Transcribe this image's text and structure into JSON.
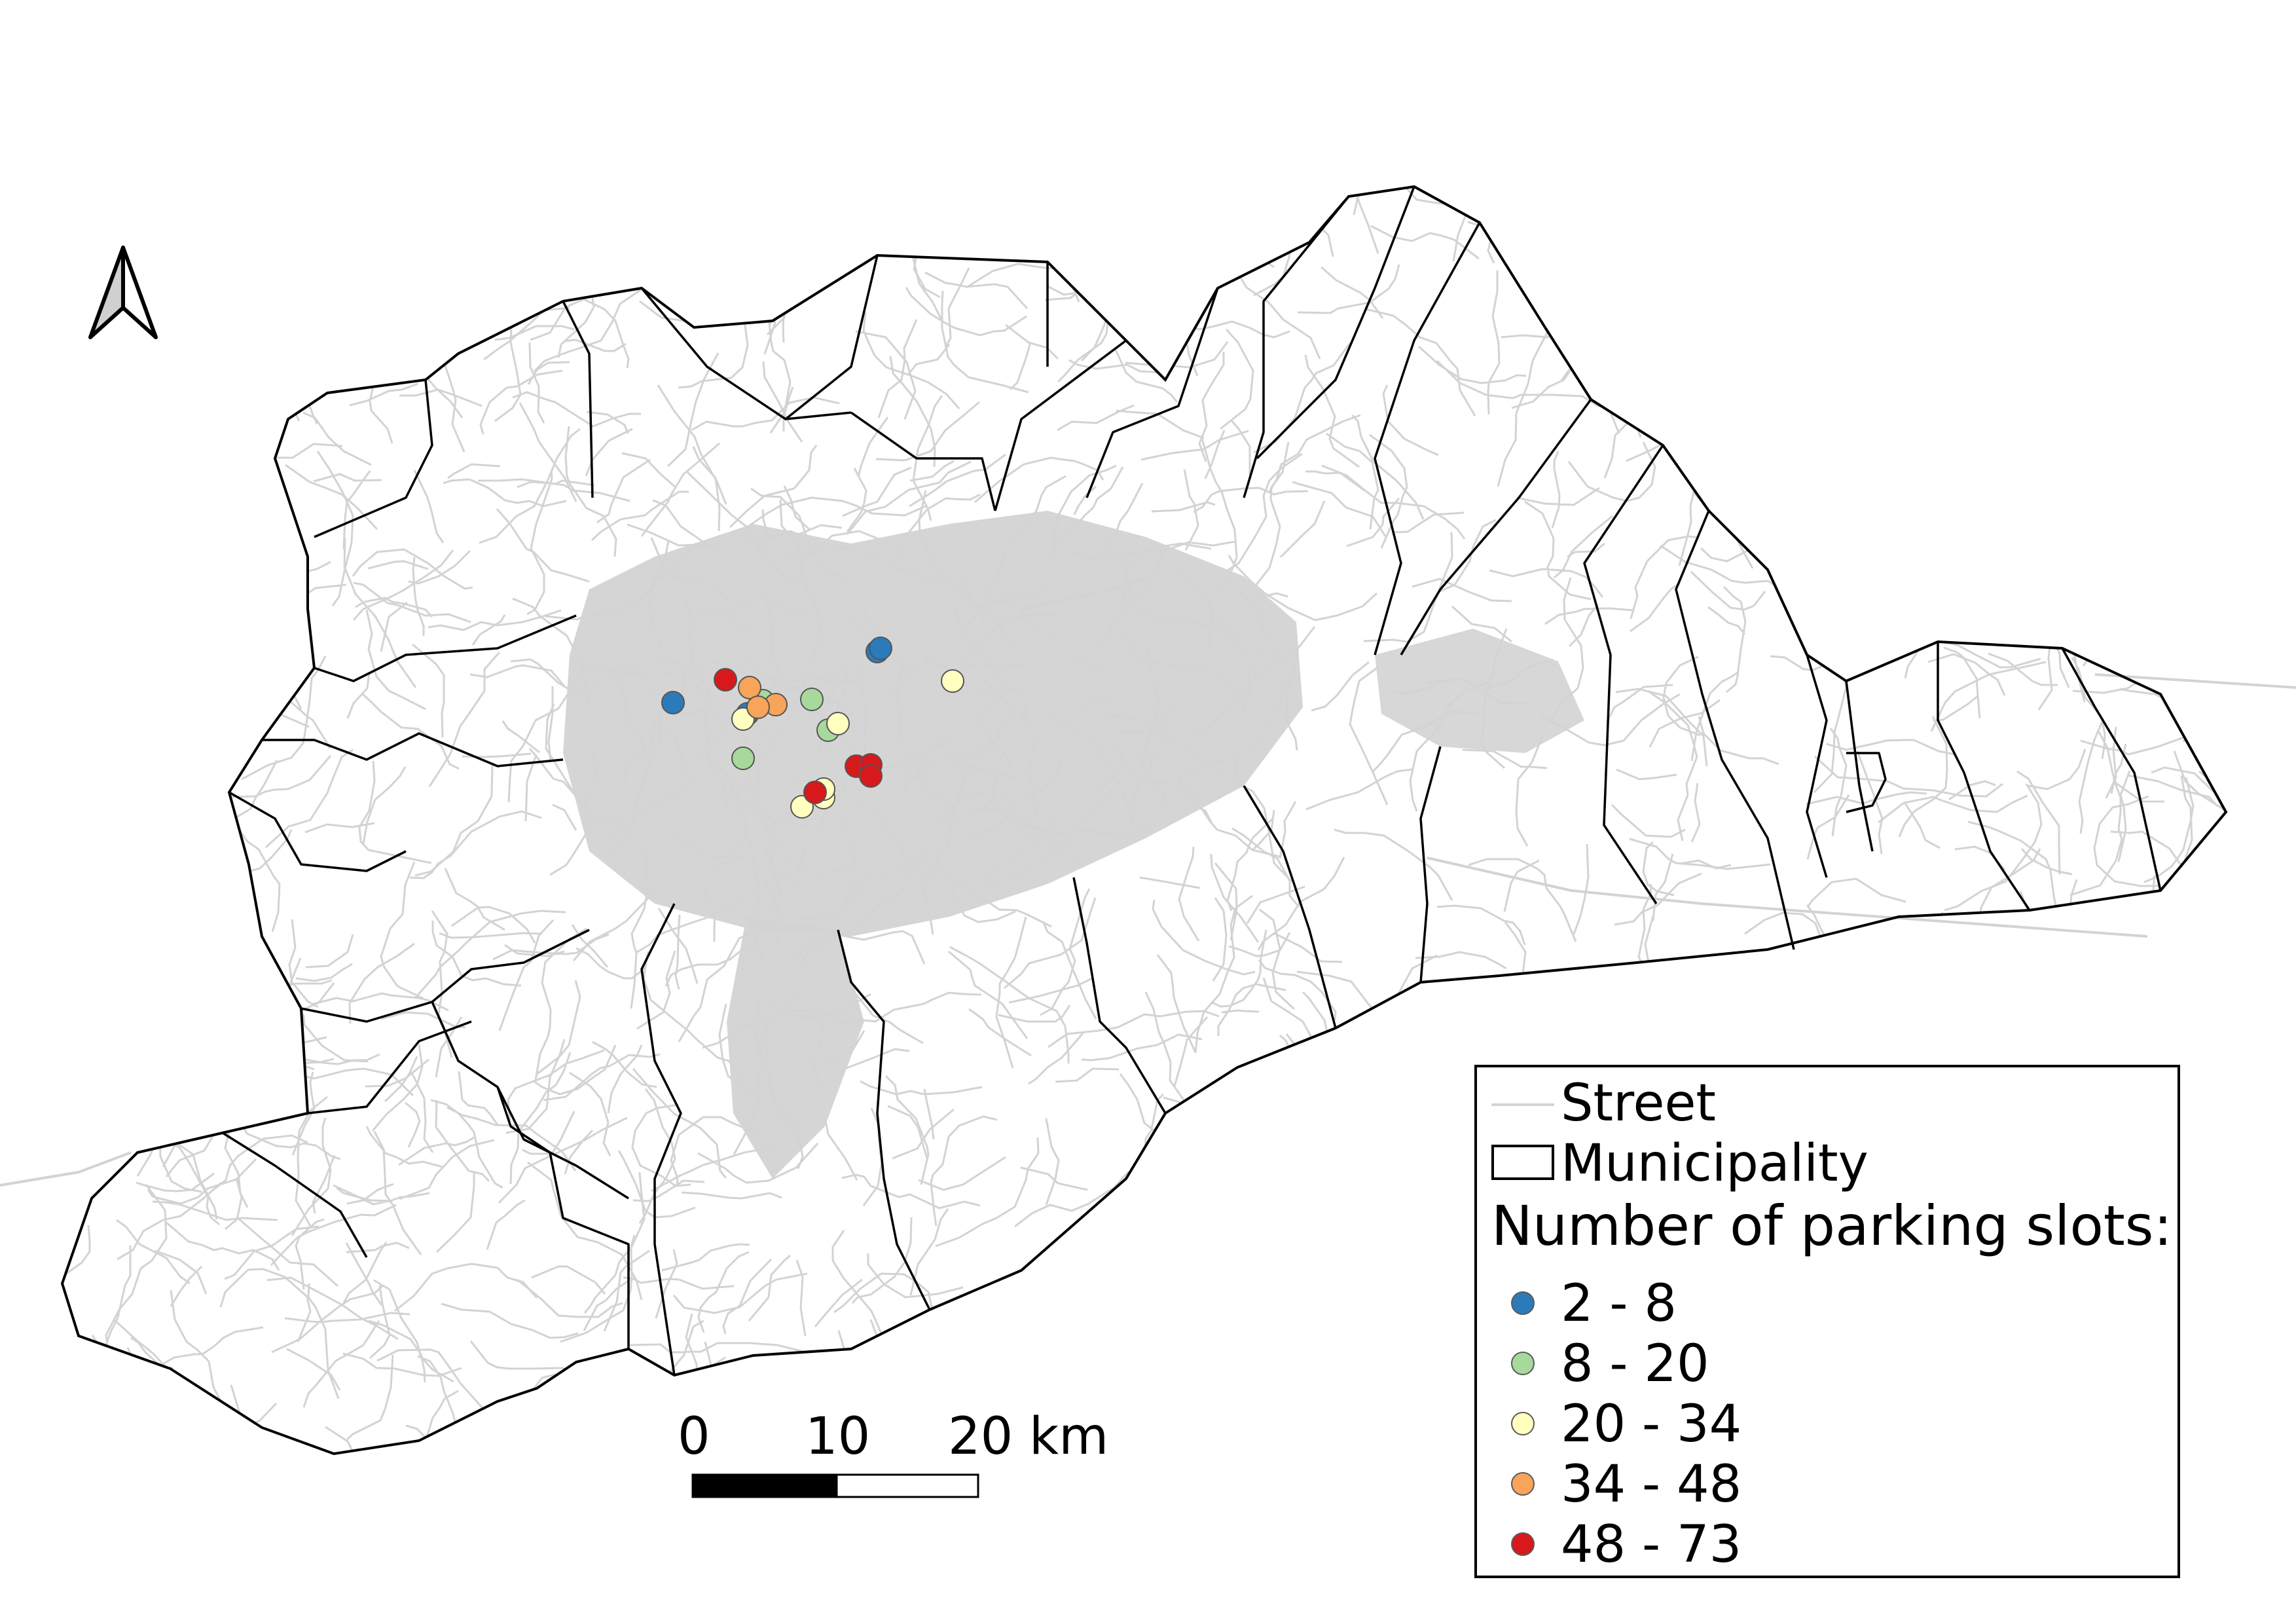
{
  "legend": {
    "street_label": "Street",
    "municipality_label": "Municipality",
    "title": "Number of parking slots:",
    "classes": [
      {
        "label": "2 - 8",
        "color": "#2b7bba"
      },
      {
        "label": "8 - 20",
        "color": "#a6d99b"
      },
      {
        "label": "20 - 34",
        "color": "#ffffc0"
      },
      {
        "label": "34 - 48",
        "color": "#f8a45a"
      },
      {
        "label": "48 - 73",
        "color": "#d7191c"
      }
    ]
  },
  "scale_bar": {
    "tick_0": "0",
    "tick_1": "10",
    "tick_2": "20 km"
  },
  "north_arrow": {
    "icon": "north-arrow-icon"
  },
  "colors": {
    "street": "#d3d3d3",
    "municipality_border": "#000000",
    "background": "#ffffff"
  },
  "parking_points": [
    {
      "class": 0
    },
    {
      "class": 0
    },
    {
      "class": 0
    },
    {
      "class": 0
    },
    {
      "class": 1
    },
    {
      "class": 1
    },
    {
      "class": 1
    },
    {
      "class": 1
    },
    {
      "class": 2
    },
    {
      "class": 2
    },
    {
      "class": 2
    },
    {
      "class": 2
    },
    {
      "class": 2
    },
    {
      "class": 2
    },
    {
      "class": 3
    },
    {
      "class": 3
    },
    {
      "class": 3
    },
    {
      "class": 4
    },
    {
      "class": 4
    },
    {
      "class": 4
    },
    {
      "class": 4
    },
    {
      "class": 4
    }
  ]
}
